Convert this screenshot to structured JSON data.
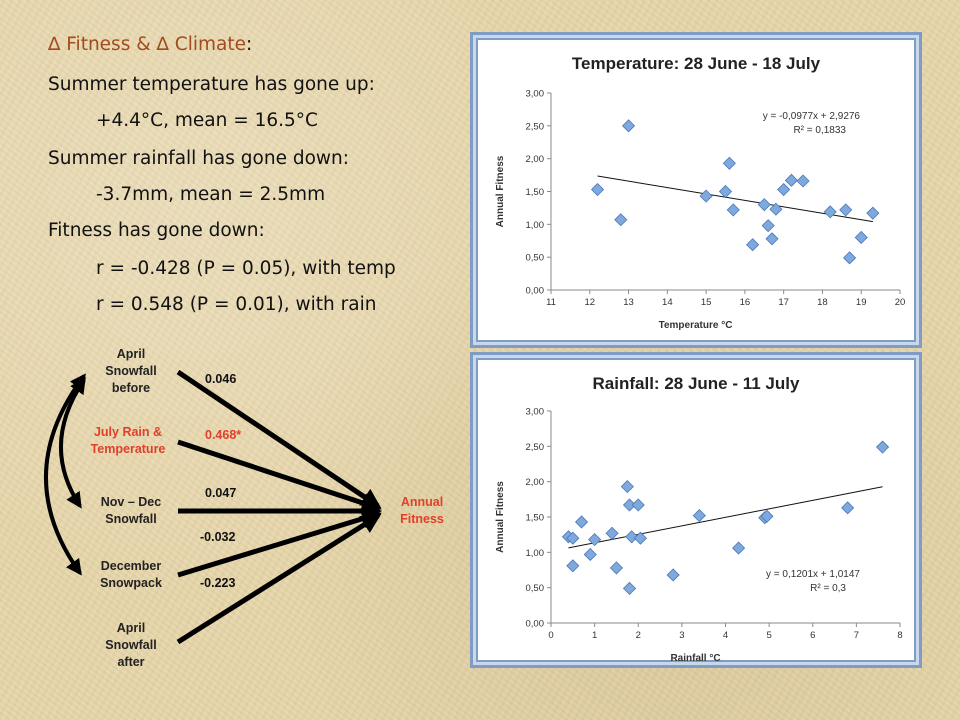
{
  "slide": {
    "title_prefix": "∆ Fitness & ∆ Climate",
    "title_suffix": ":",
    "bullets": [
      {
        "text": "Summer temperature has gone up:",
        "level": 0
      },
      {
        "text": "+4.4°C, mean = 16.5°C",
        "level": 1
      },
      {
        "text": "Summer rainfall has gone down:",
        "level": 0
      },
      {
        "text": "-3.7mm, mean = 2.5mm",
        "level": 1
      },
      {
        "text": "Fitness has gone down:",
        "level": 0
      },
      {
        "text": "r = -0.428 (P = 0.05), with temp",
        "level": 1
      },
      {
        "text": "r = 0.548 (P = 0.01), with rain",
        "level": 1
      }
    ]
  },
  "path_diagram": {
    "nodes": [
      {
        "label_lines": [
          "April",
          "Snowfall",
          "before"
        ],
        "color": "#222222"
      },
      {
        "label_lines": [
          "July Rain &",
          "Temperature"
        ],
        "color": "#e0402a"
      },
      {
        "label_lines": [
          "Nov – Dec",
          "Snowfall"
        ],
        "color": "#222222"
      },
      {
        "label_lines": [
          "December",
          "Snowpack"
        ],
        "color": "#222222"
      },
      {
        "label_lines": [
          "April",
          "Snowfall",
          "after"
        ],
        "color": "#222222"
      }
    ],
    "coefficients": [
      "0.046",
      "0.468*",
      "0.047",
      "-0.032",
      "-0.223"
    ],
    "coefficient_colors": [
      "#111111",
      "#e0402a",
      "#111111",
      "#111111",
      "#111111"
    ],
    "target_lines": [
      "Annual",
      "Fitness"
    ],
    "target_color": "#e0402a"
  },
  "chart_data": [
    {
      "type": "scatter",
      "title": "Temperature:  28 June - 18 July",
      "xlabel": "Temperature °C",
      "ylabel": "Annual Fitness",
      "xlim": [
        11,
        20
      ],
      "ylim": [
        0,
        3
      ],
      "x_ticks": [
        "11",
        "12",
        "13",
        "14",
        "15",
        "16",
        "17",
        "18",
        "19",
        "20"
      ],
      "y_ticks": [
        "0,00",
        "0,50",
        "1,00",
        "1,50",
        "2,00",
        "2,50",
        "3,00"
      ],
      "grid": false,
      "marker_color": "#7fa8dc",
      "points": [
        [
          12.2,
          1.53
        ],
        [
          12.8,
          1.07
        ],
        [
          13.0,
          2.5
        ],
        [
          15.0,
          1.43
        ],
        [
          15.5,
          1.5
        ],
        [
          15.6,
          1.93
        ],
        [
          15.7,
          1.22
        ],
        [
          16.2,
          0.69
        ],
        [
          16.5,
          1.3
        ],
        [
          16.6,
          0.98
        ],
        [
          16.7,
          0.78
        ],
        [
          16.8,
          1.23
        ],
        [
          17.0,
          1.53
        ],
        [
          17.2,
          1.67
        ],
        [
          17.5,
          1.66
        ],
        [
          18.2,
          1.19
        ],
        [
          18.6,
          1.22
        ],
        [
          18.7,
          0.49
        ],
        [
          19.0,
          0.8
        ],
        [
          19.3,
          1.17
        ]
      ],
      "trendline": {
        "slope": -0.0977,
        "intercept": 2.9276,
        "x_range": [
          12.2,
          19.3
        ]
      },
      "equation": "y = -0,0977x + 2,9276",
      "r2": "R² = 0,1833"
    },
    {
      "type": "scatter",
      "title": "Rainfall:  28 June - 11 July",
      "xlabel": "Rainfall  °C",
      "ylabel": "Annual Fitness",
      "xlim": [
        0,
        8
      ],
      "ylim": [
        0,
        3
      ],
      "x_ticks": [
        "0",
        "1",
        "2",
        "3",
        "4",
        "5",
        "6",
        "7",
        "8"
      ],
      "y_ticks": [
        "0,00",
        "0,50",
        "1,00",
        "1,50",
        "2,00",
        "2,50",
        "3,00"
      ],
      "grid": false,
      "marker_color": "#7fa8dc",
      "points": [
        [
          0.4,
          1.22
        ],
        [
          0.5,
          1.2
        ],
        [
          0.5,
          0.81
        ],
        [
          0.7,
          1.43
        ],
        [
          0.9,
          0.97
        ],
        [
          1.0,
          1.18
        ],
        [
          1.4,
          1.27
        ],
        [
          1.5,
          0.78
        ],
        [
          1.75,
          1.93
        ],
        [
          1.8,
          1.67
        ],
        [
          1.8,
          0.49
        ],
        [
          1.85,
          1.22
        ],
        [
          2.0,
          1.67
        ],
        [
          2.05,
          1.2
        ],
        [
          2.8,
          0.68
        ],
        [
          3.4,
          1.52
        ],
        [
          4.3,
          1.06
        ],
        [
          4.9,
          1.49
        ],
        [
          4.95,
          1.51
        ],
        [
          6.8,
          1.63
        ],
        [
          7.6,
          2.49
        ]
      ],
      "trendline": {
        "slope": 0.1201,
        "intercept": 1.0147,
        "x_range": [
          0.4,
          7.6
        ]
      },
      "equation": "y = 0,1201x + 1,0147",
      "r2": "R² = 0,3"
    }
  ]
}
